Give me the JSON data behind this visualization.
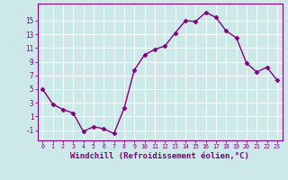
{
  "x": [
    0,
    1,
    2,
    3,
    4,
    5,
    6,
    7,
    8,
    9,
    10,
    11,
    12,
    13,
    14,
    15,
    16,
    17,
    18,
    19,
    20,
    21,
    22,
    23
  ],
  "y": [
    5,
    2.8,
    2.0,
    1.5,
    -1.2,
    -0.5,
    -0.8,
    -1.5,
    2.2,
    7.8,
    10.0,
    10.8,
    11.3,
    13.2,
    15.0,
    14.9,
    16.2,
    15.5,
    13.5,
    12.5,
    8.8,
    7.5,
    8.2,
    6.3
  ],
  "line_color": "#800080",
  "marker": "D",
  "marker_size": 2.5,
  "linewidth": 1.0,
  "xlabel": "Windchill (Refroidissement éolien,°C)",
  "xlabel_fontsize": 6.5,
  "ylabel_ticks": [
    -1,
    1,
    3,
    5,
    7,
    9,
    11,
    13,
    15
  ],
  "xtick_labels": [
    "0",
    "1",
    "2",
    "3",
    "4",
    "5",
    "6",
    "7",
    "8",
    "9",
    "10",
    "11",
    "12",
    "13",
    "14",
    "15",
    "16",
    "17",
    "18",
    "19",
    "20",
    "21",
    "22",
    "23"
  ],
  "ylim": [
    -2.5,
    17.5
  ],
  "xlim": [
    -0.5,
    23.5
  ],
  "bg_color": "#cce8e8",
  "grid_color": "#b0d0d0",
  "tick_color": "#800080",
  "label_color": "#800080",
  "spine_color": "#800080"
}
